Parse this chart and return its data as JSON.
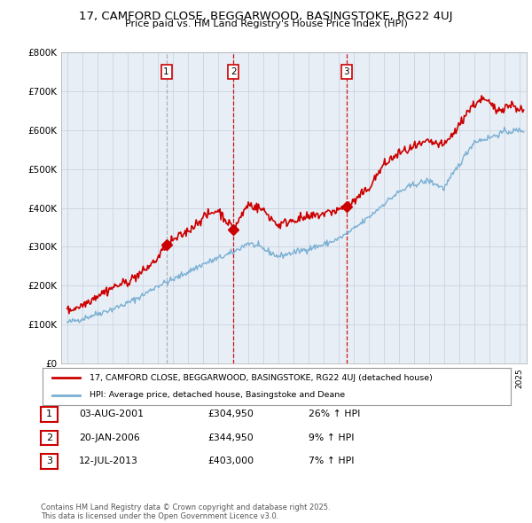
{
  "title": "17, CAMFORD CLOSE, BEGGARWOOD, BASINGSTOKE, RG22 4UJ",
  "subtitle": "Price paid vs. HM Land Registry's House Price Index (HPI)",
  "ylim": [
    0,
    800000
  ],
  "yticks": [
    0,
    100000,
    200000,
    300000,
    400000,
    500000,
    600000,
    700000,
    800000
  ],
  "ytick_labels": [
    "£0",
    "£100K",
    "£200K",
    "£300K",
    "£400K",
    "£500K",
    "£600K",
    "£700K",
    "£800K"
  ],
  "xlim_start": 1994.6,
  "xlim_end": 2025.5,
  "sale_dates": [
    2001.58,
    2006.04,
    2013.53
  ],
  "sale_labels": [
    "1",
    "2",
    "3"
  ],
  "sale_prices": [
    304950,
    344950,
    403000
  ],
  "sale1_linestyle": "dashed",
  "sale1_linecolor": "#aaaaaa",
  "sale23_linestyle": "dashed",
  "sale23_linecolor": "#cc0000",
  "legend_line1": "17, CAMFORD CLOSE, BEGGARWOOD, BASINGSTOKE, RG22 4UJ (detached house)",
  "legend_line2": "HPI: Average price, detached house, Basingstoke and Deane",
  "line_color_red": "#cc0000",
  "line_color_blue": "#7ab0d4",
  "chart_bg": "#e8eef5",
  "table_entries": [
    {
      "num": "1",
      "date": "03-AUG-2001",
      "price": "£304,950",
      "change": "26% ↑ HPI"
    },
    {
      "num": "2",
      "date": "20-JAN-2006",
      "price": "£344,950",
      "change": "9% ↑ HPI"
    },
    {
      "num": "3",
      "date": "12-JUL-2013",
      "price": "£403,000",
      "change": "7% ↑ HPI"
    }
  ],
  "footnote": "Contains HM Land Registry data © Crown copyright and database right 2025.\nThis data is licensed under the Open Government Licence v3.0.",
  "background_color": "#ffffff",
  "grid_color": "#c8d4e0",
  "marker_color": "#cc0000"
}
